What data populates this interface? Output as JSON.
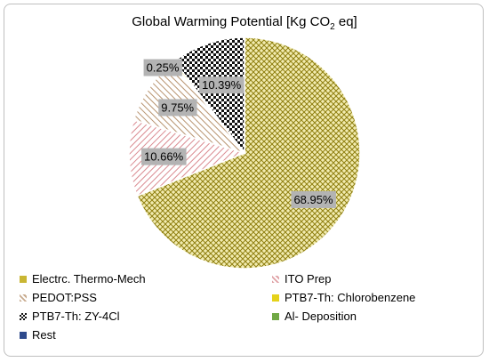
{
  "chart_data": {
    "type": "pie",
    "title_main": "Global Warming Potential [Kg CO",
    "title_sub": "2",
    "title_tail": " eq]",
    "slices": [
      {
        "name": "Electrc. Thermo-Mech",
        "value": 68.95,
        "label": "68.95%",
        "color": "#c9b633",
        "pattern": "crosshatch"
      },
      {
        "name": "ITO Prep",
        "value": 10.66,
        "label": "10.66%",
        "color": "#e0a3a7",
        "pattern": "diagonal"
      },
      {
        "name": "PEDOT:PSS",
        "value": 9.75,
        "label": "9.75%",
        "color": "#c8ab8f",
        "pattern": "diagonal"
      },
      {
        "name": "PTB7-Th: Chlorobenzene",
        "value": 0.25,
        "label": "0.25%",
        "color": "#e5d21b",
        "pattern": "solid"
      },
      {
        "name": "PTB7-Th: ZY-4Cl",
        "value": 10.39,
        "label": "10.39%",
        "color": "#000000",
        "pattern": "checker"
      },
      {
        "name": "Al- Deposition",
        "value": 0,
        "label": "",
        "color": "#70a845",
        "pattern": "solid"
      },
      {
        "name": "Rest",
        "value": 0,
        "label": "",
        "color": "#2e4a8c",
        "pattern": "solid"
      }
    ],
    "legend_position": "bottom"
  }
}
